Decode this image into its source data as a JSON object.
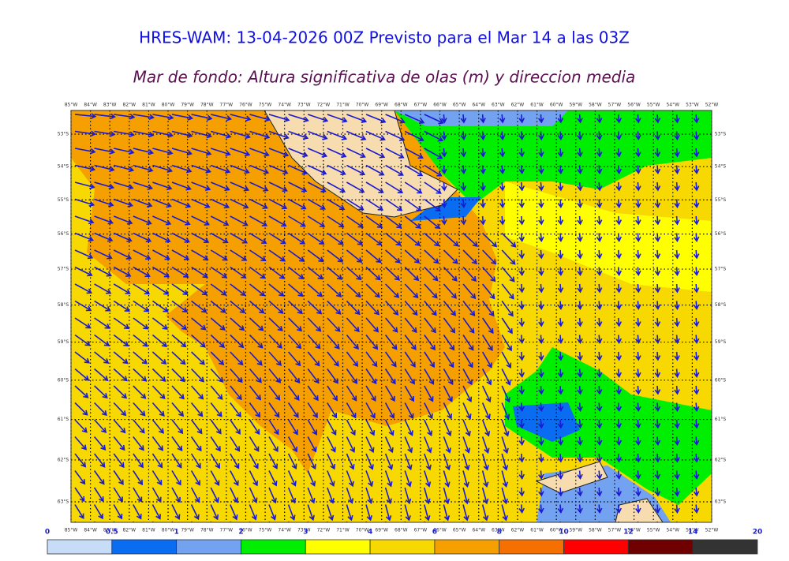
{
  "header": {
    "title": "HRES-WAM: 13-04-2026 00Z Previsto para el Mar 14 a las 03Z",
    "subtitle": "Mar de fondo: Altura significativa de olas (m) y direccion media"
  },
  "map": {
    "lons": [
      {
        "value": 85,
        "label": "85°W"
      },
      {
        "value": 84,
        "label": "84°W"
      },
      {
        "value": 83,
        "label": "83°W"
      },
      {
        "value": 82,
        "label": "82°W"
      },
      {
        "value": 81,
        "label": "81°W"
      },
      {
        "value": 80,
        "label": "80°W"
      },
      {
        "value": 79,
        "label": "79°W"
      },
      {
        "value": 78,
        "label": "78°W"
      },
      {
        "value": 77,
        "label": "77°W"
      },
      {
        "value": 76,
        "label": "76°W"
      },
      {
        "value": 75,
        "label": "75°W"
      },
      {
        "value": 74,
        "label": "74°W"
      },
      {
        "value": 73,
        "label": "73°W"
      },
      {
        "value": 72,
        "label": "72°W"
      },
      {
        "value": 71,
        "label": "71°W"
      },
      {
        "value": 70,
        "label": "70°W"
      },
      {
        "value": 69,
        "label": "69°W"
      },
      {
        "value": 68,
        "label": "68°W"
      },
      {
        "value": 67,
        "label": "67°W"
      },
      {
        "value": 66,
        "label": "66°W"
      },
      {
        "value": 65,
        "label": "65°W"
      },
      {
        "value": 64,
        "label": "64°W"
      },
      {
        "value": 63,
        "label": "63°W"
      },
      {
        "value": 62,
        "label": "62°W"
      },
      {
        "value": 61,
        "label": "61°W"
      },
      {
        "value": 60,
        "label": "60°W"
      },
      {
        "value": 59,
        "label": "59°W"
      },
      {
        "value": 58,
        "label": "58°W"
      },
      {
        "value": 57,
        "label": "57°W"
      },
      {
        "value": 56,
        "label": "56°W"
      },
      {
        "value": 55,
        "label": "55°W"
      },
      {
        "value": 54,
        "label": "54°W"
      },
      {
        "value": 53,
        "label": "53°W"
      },
      {
        "value": 52,
        "label": "52°W"
      }
    ],
    "lats": [
      {
        "value": 53,
        "label": "53°S"
      },
      {
        "value": 54,
        "label": "54°S"
      },
      {
        "value": 55,
        "label": "55°S"
      },
      {
        "value": 56,
        "label": "56°S"
      },
      {
        "value": 57,
        "label": "57°S"
      },
      {
        "value": 58,
        "label": "58°S"
      },
      {
        "value": 59,
        "label": "59°S"
      },
      {
        "value": 60,
        "label": "60°S"
      },
      {
        "value": 61,
        "label": "61°S"
      },
      {
        "value": 62,
        "label": "62°S"
      },
      {
        "value": 63,
        "label": "63°S"
      }
    ]
  },
  "colorbar": {
    "ticks": [
      0,
      0.5,
      1,
      2,
      3,
      4,
      6,
      8,
      10,
      12,
      14,
      20
    ],
    "colors": [
      "#c6dcf7",
      "#0a6cf0",
      "#72a2f0",
      "#00ee00",
      "#ffff00",
      "#f7d800",
      "#f5a000",
      "#f57000",
      "#ff0000",
      "#6e0000",
      "#333333"
    ]
  }
}
